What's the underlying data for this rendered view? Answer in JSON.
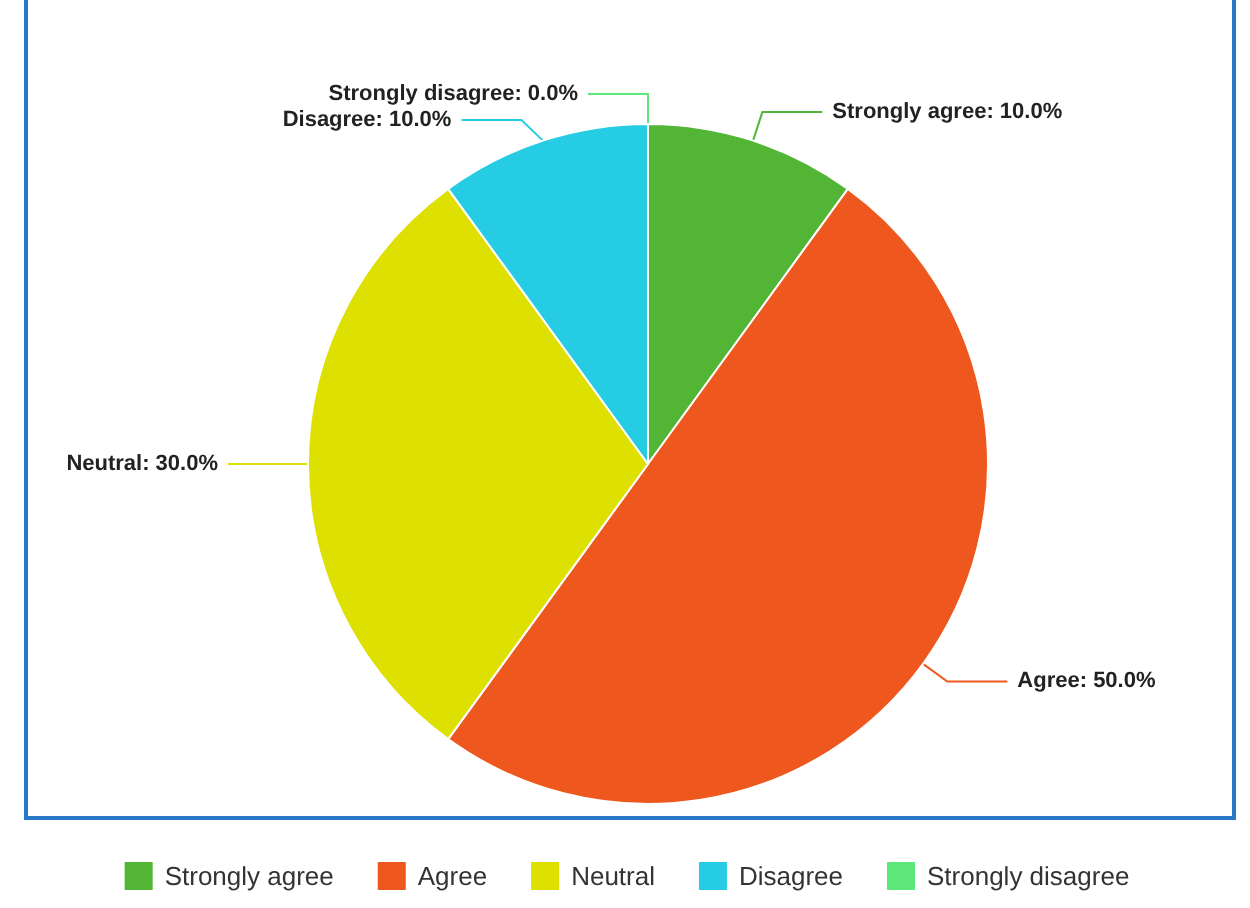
{
  "chart_data": {
    "type": "pie",
    "categories": [
      "Strongly agree",
      "Agree",
      "Neutral",
      "Disagree",
      "Strongly disagree"
    ],
    "values": [
      10,
      50,
      30,
      10,
      0
    ],
    "value_labels": [
      "Strongly agree: 10.0%",
      "Agree: 50.0%",
      "Neutral: 30.0%",
      "Disagree: 10.0%",
      "Strongly disagree: 0.0%"
    ],
    "colors": [
      "#52b535",
      "#ee581e",
      "#dde000",
      "#26cbe4",
      "#5ee87a"
    ],
    "legend": "bottom"
  }
}
